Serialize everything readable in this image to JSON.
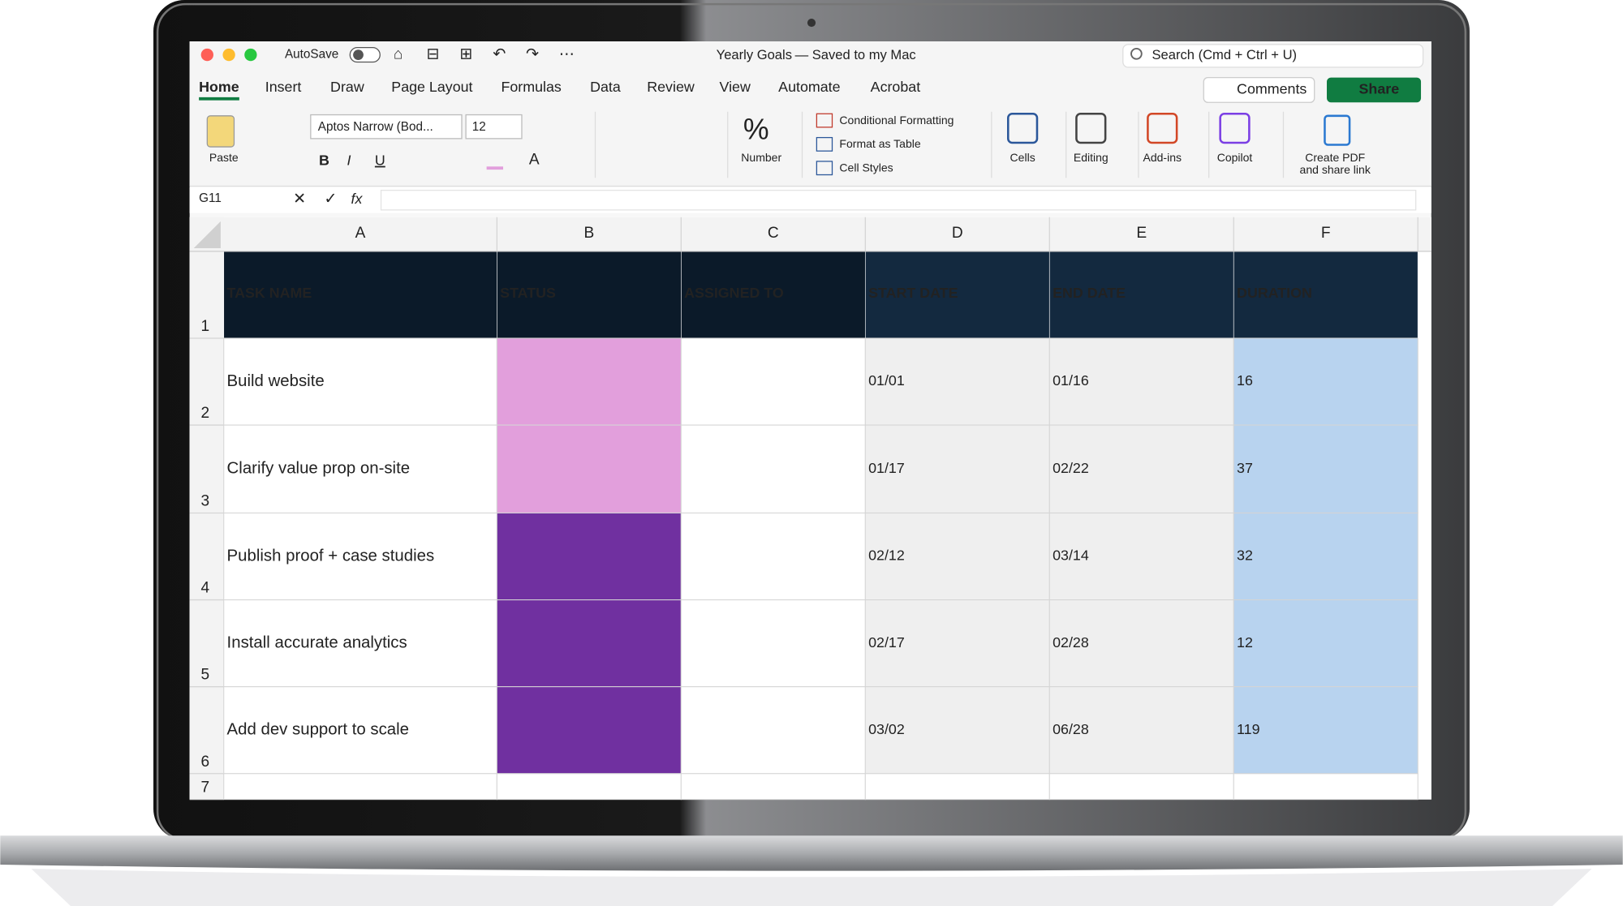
{
  "window": {
    "autosave": "AutoSave",
    "title": "Yearly Goals",
    "saved": "— Saved to my Mac",
    "search": "Search (Cmd + Ctrl + U)"
  },
  "tabs": [
    "Home",
    "Insert",
    "Draw",
    "Page Layout",
    "Formulas",
    "Data",
    "Review",
    "View",
    "Automate",
    "Acrobat"
  ],
  "buttons": {
    "comments": "Comments",
    "share": "Share"
  },
  "ribbon": {
    "paste": "Paste",
    "font": "Aptos Narrow (Bod...",
    "font_size": "12",
    "format_buttons": [
      "B",
      "I",
      "U"
    ],
    "font_color": "A",
    "number": "Number",
    "styles": [
      "Conditional Formatting",
      "Format as Table",
      "Cell Styles"
    ],
    "cells": "Cells",
    "editing": "Editing",
    "addins": "Add-ins",
    "copilot": "Copilot",
    "pdf": [
      "Create PDF",
      "and share link"
    ]
  },
  "formula_bar": {
    "name_box": "G11",
    "fx": "fx"
  },
  "sheet": {
    "columns": [
      "A",
      "B",
      "C",
      "D",
      "E",
      "F"
    ],
    "row_numbers": [
      "1",
      "2",
      "3",
      "4",
      "5",
      "6",
      "7"
    ],
    "header": [
      "TASK NAME",
      "STATUS",
      "ASSIGNED TO",
      "START DATE",
      "END DATE",
      "DURATION"
    ],
    "rows": [
      {
        "task": "Build website",
        "status_color": "#e29fdc",
        "start": "01/01",
        "end": "01/16",
        "duration": 16
      },
      {
        "task": "Clarify value prop on-site",
        "status_color": "#e29fdc",
        "start": "01/17",
        "end": "02/22",
        "duration": 37
      },
      {
        "task": "Publish proof + case studies",
        "status_color": "#7030a0",
        "start": "02/12",
        "end": "03/14",
        "duration": 32
      },
      {
        "task": "Install accurate analytics",
        "status_color": "#7030a0",
        "start": "02/17",
        "end": "02/28",
        "duration": 12
      },
      {
        "task": "Add dev support to scale",
        "status_color": "#7030a0",
        "start": "03/02",
        "end": "06/28",
        "duration": 119
      }
    ]
  }
}
